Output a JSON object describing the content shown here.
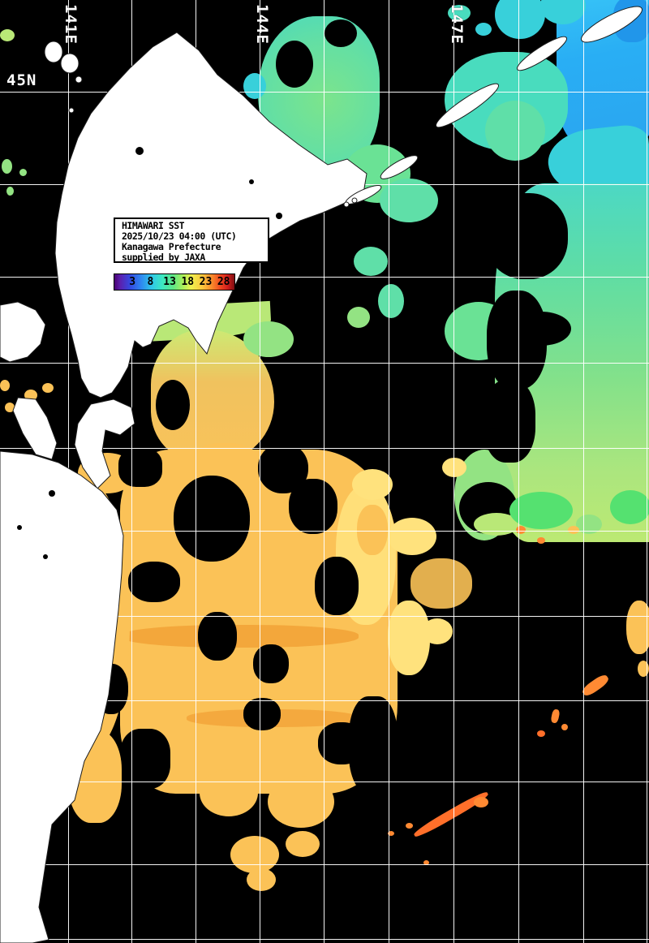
{
  "map": {
    "lat_label": "45N",
    "lon_labels": [
      {
        "text": "141E"
      },
      {
        "text": "144E"
      },
      {
        "text": "147E"
      }
    ]
  },
  "info_box": {
    "line1": "HIMAWARI SST",
    "line2": "2025/10/23 04:00 (UTC)",
    "line3": "Kanagawa Prefecture",
    "line4": "supplied by JAXA"
  },
  "colorbar": {
    "ticks": [
      "3",
      "8",
      "13",
      "18",
      "23",
      "28"
    ]
  },
  "colors": {
    "grid": "#ffffff",
    "land": "#ffffff",
    "sea": "#000000",
    "blue": "#29aef4",
    "cyan": "#38d0da",
    "turquoise": "#49dcbe",
    "greenCyan": "#5fdfa8",
    "green": "#6ae295",
    "brightGreen": "#55e170",
    "paleGreen": "#93e383",
    "yellowGreen": "#b9e877",
    "yellow": "#ffe27d",
    "orange": "#fbc257",
    "orangeDeep": "#f1a035",
    "orangeHot": "#ff8a33",
    "redOrange": "#ff6f2a"
  }
}
